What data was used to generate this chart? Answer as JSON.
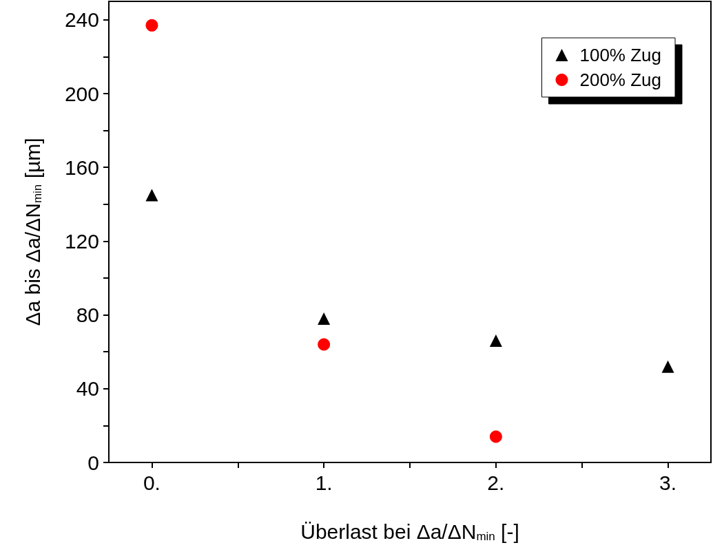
{
  "chart_data": {
    "type": "scatter",
    "xlabel": "Überlast bei Δa/ΔN$_{min}$ [-]",
    "ylabel": "Δa bis Δa/ΔN$_{min}$ [µm]",
    "x": [
      0,
      1,
      2,
      3
    ],
    "series": [
      {
        "name": "100% Zug",
        "color": "#000000",
        "marker": "triangle",
        "values": [
          145,
          78,
          66,
          52
        ]
      },
      {
        "name": "200% Zug",
        "color": "#ff0000",
        "marker": "circle",
        "values": [
          237,
          64,
          14
        ],
        "x": [
          0,
          1,
          2
        ]
      }
    ],
    "xlim": [
      -0.25,
      3.25
    ],
    "xticks": [
      {
        "value": 0,
        "label": "0."
      },
      {
        "value": 0.5,
        "label": null
      },
      {
        "value": 1,
        "label": "1."
      },
      {
        "value": 1.5,
        "label": null
      },
      {
        "value": 2,
        "label": "2."
      },
      {
        "value": 2.5,
        "label": null
      },
      {
        "value": 3,
        "label": "3."
      }
    ],
    "ylim": [
      0,
      250
    ],
    "yticks": [
      0,
      {
        "value": 20,
        "label": null
      },
      40,
      {
        "value": 60,
        "label": null
      },
      80,
      {
        "value": 100,
        "label": null
      },
      120,
      {
        "value": 140,
        "label": null
      },
      160,
      {
        "value": 180,
        "label": null
      },
      200,
      {
        "value": 220,
        "label": null
      },
      240
    ],
    "grid": false,
    "legend": "top right"
  }
}
